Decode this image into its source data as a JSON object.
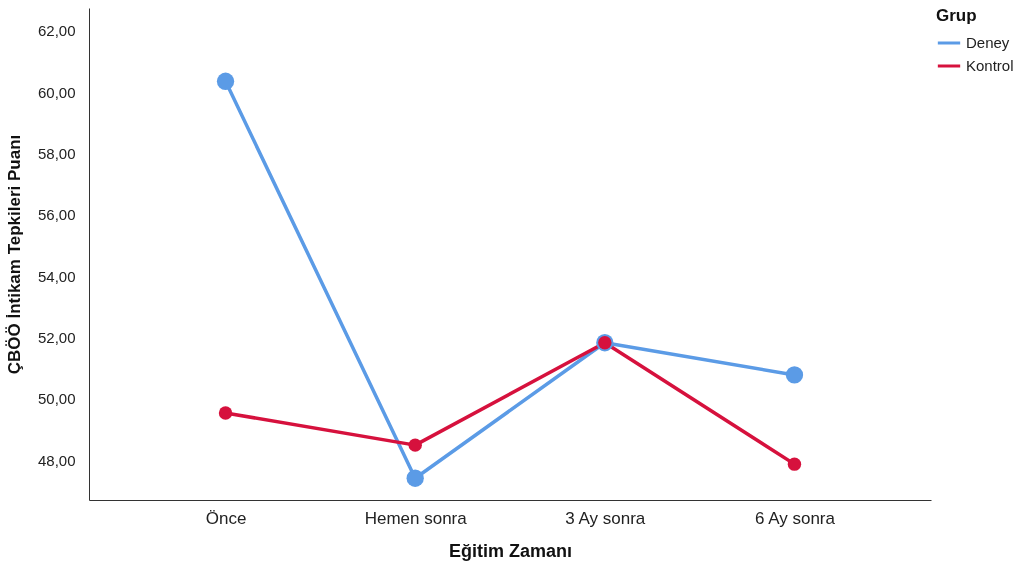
{
  "chart_data": {
    "type": "line",
    "xlabel": "Eğitim Zamanı",
    "ylabel": "ÇBÖÖ İntikam Tepkileri Puanı",
    "legend_title": "Grup",
    "categories": [
      "Önce",
      "Hemen sonra",
      "3 Ay sonra",
      "6 Ay sonra"
    ],
    "series": [
      {
        "name": "Deney",
        "color": "#5b9be6",
        "values": [
          60.36,
          47.41,
          51.83,
          50.78
        ]
      },
      {
        "name": "Kontrol",
        "color": "#d6113d",
        "values": [
          49.54,
          48.49,
          51.83,
          47.87
        ]
      }
    ],
    "ylim": [
      46.7,
      62.75
    ],
    "yticks": [
      {
        "value": 48,
        "label": "48,00"
      },
      {
        "value": 50,
        "label": "50,00"
      },
      {
        "value": 52,
        "label": "52,00"
      },
      {
        "value": 54,
        "label": "54,00"
      },
      {
        "value": 56,
        "label": "56,00"
      },
      {
        "value": 58,
        "label": "58,00"
      },
      {
        "value": 60,
        "label": "60,00"
      },
      {
        "value": 62,
        "label": "62,00"
      }
    ],
    "grid": false,
    "legend": "right",
    "marker": "circle",
    "line_style": "solid"
  }
}
